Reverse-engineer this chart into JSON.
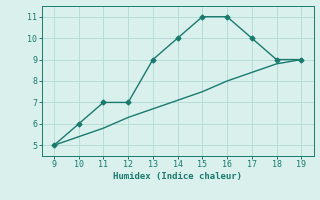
{
  "line1_x": [
    9,
    10,
    11,
    12,
    13,
    14,
    15,
    16,
    17,
    18,
    19
  ],
  "line1_y": [
    5,
    6,
    7,
    7,
    9,
    10,
    11,
    11,
    10,
    9,
    9
  ],
  "line2_x": [
    9,
    10,
    11,
    12,
    13,
    14,
    15,
    16,
    17,
    18,
    19
  ],
  "line2_y": [
    5,
    5.4,
    5.8,
    6.3,
    6.7,
    7.1,
    7.5,
    8.0,
    8.4,
    8.8,
    9.0
  ],
  "line_color": "#1a7a6e",
  "bg_color": "#d9f0ed",
  "grid_color": "#b5ddd8",
  "xlabel": "Humidex (Indice chaleur)",
  "xlim": [
    8.5,
    19.5
  ],
  "ylim": [
    4.5,
    11.5
  ],
  "xticks": [
    9,
    10,
    11,
    12,
    13,
    14,
    15,
    16,
    17,
    18,
    19
  ],
  "yticks": [
    5,
    6,
    7,
    8,
    9,
    10,
    11
  ],
  "marker": "D",
  "markersize": 2.5,
  "linewidth": 1.0,
  "label_fontsize": 6.5,
  "tick_fontsize": 6
}
